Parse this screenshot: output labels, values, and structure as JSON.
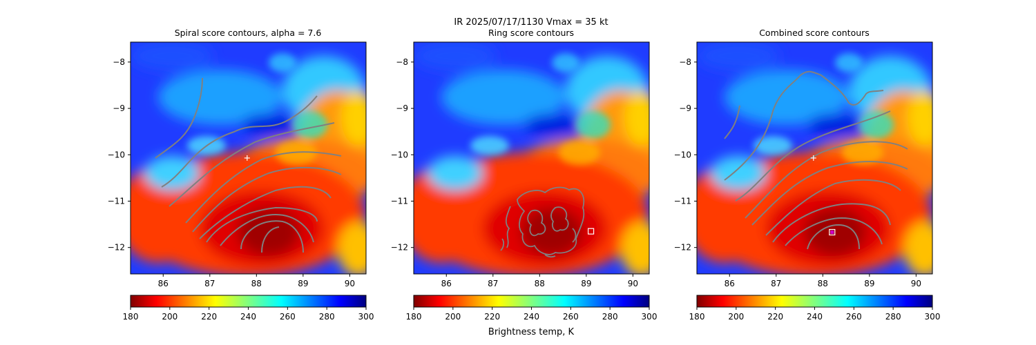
{
  "suptitle_line1": "IR  2025/07/17/1130    Vmax = 35 kt",
  "colorbar_label": "Brightness temp, K",
  "colorbar_ticks": [
    180,
    200,
    220,
    240,
    260,
    280,
    300
  ],
  "chart_data": [
    {
      "type": "heatmap",
      "title": "Spiral score contours, alpha =  7.6",
      "xlabel": "",
      "ylabel": "",
      "xlim": [
        85.3,
        90.35
      ],
      "ylim": [
        -12.57,
        -7.57
      ],
      "xticks": [
        86,
        87,
        88,
        89,
        90
      ],
      "yticks": [
        -8,
        -9,
        -10,
        -11,
        -12
      ],
      "colorbar": {
        "cmap": "jet_r",
        "range": [
          180,
          300
        ],
        "label": ""
      },
      "markers": [
        {
          "shape": "plus",
          "lon": 87.8,
          "lat": -10.07,
          "color": "#ffffff"
        }
      ],
      "contour_color": "#808080"
    },
    {
      "type": "heatmap",
      "title": "Ring score contours",
      "xlabel": "",
      "ylabel": "",
      "xlim": [
        85.3,
        90.35
      ],
      "ylim": [
        -12.57,
        -7.57
      ],
      "xticks": [
        86,
        87,
        88,
        89,
        90
      ],
      "yticks": [
        -8,
        -9,
        -10,
        -11,
        -12
      ],
      "colorbar": {
        "cmap": "jet_r",
        "range": [
          180,
          300
        ],
        "label": "Brightness temp, K"
      },
      "markers": [
        {
          "shape": "square",
          "lon": 89.1,
          "lat": -11.65,
          "color": "#ffffff"
        }
      ],
      "contour_color": "#808080"
    },
    {
      "type": "heatmap",
      "title": "Combined score contours",
      "xlabel": "",
      "ylabel": "",
      "xlim": [
        85.3,
        90.35
      ],
      "ylim": [
        -12.57,
        -7.57
      ],
      "xticks": [
        86,
        87,
        88,
        89,
        90
      ],
      "yticks": [
        -8,
        -9,
        -10,
        -11,
        -12
      ],
      "colorbar": {
        "cmap": "jet_r",
        "range": [
          180,
          300
        ],
        "label": ""
      },
      "markers": [
        {
          "shape": "plus",
          "lon": 87.8,
          "lat": -10.07,
          "color": "#ffffff"
        },
        {
          "shape": "square",
          "lon": 88.2,
          "lat": -11.67,
          "color": "#ffffff"
        },
        {
          "shape": "dot",
          "lon": 88.2,
          "lat": -11.67,
          "color": "#cc00cc"
        }
      ],
      "contour_color": "#808080"
    }
  ]
}
